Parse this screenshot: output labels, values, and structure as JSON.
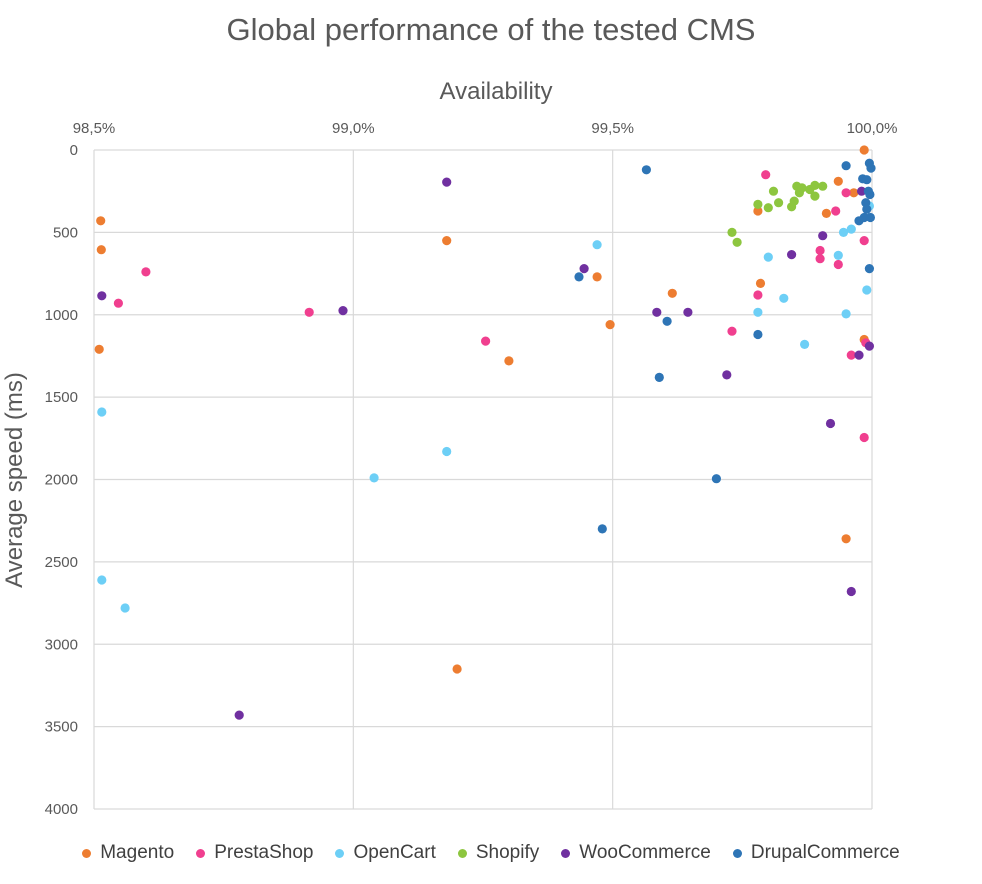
{
  "chart_data": {
    "type": "scatter",
    "title": "Global performance of the tested CMS",
    "xlabel": "Availability",
    "ylabel": "Average speed (ms)",
    "xlim": [
      98.5,
      100.0
    ],
    "ylim": [
      0,
      4000
    ],
    "y_inverted": true,
    "x_axis_position": "top",
    "x_ticks": [
      "98,5%",
      "99,0%",
      "99,5%",
      "100,0%"
    ],
    "y_ticks": [
      "0",
      "500",
      "1000",
      "1500",
      "2000",
      "2500",
      "3000",
      "3500",
      "4000"
    ],
    "grid": true,
    "legend_position": "bottom",
    "series": [
      {
        "name": "Magento",
        "color": "#ED7D31",
        "points": [
          [
            98.513,
            430
          ],
          [
            98.514,
            605
          ],
          [
            98.51,
            1210
          ],
          [
            99.18,
            550
          ],
          [
            99.47,
            770
          ],
          [
            99.3,
            1280
          ],
          [
            99.2,
            3150
          ],
          [
            99.495,
            1060
          ],
          [
            99.615,
            870
          ],
          [
            99.78,
            370
          ],
          [
            99.785,
            810
          ],
          [
            99.935,
            190
          ],
          [
            99.912,
            385
          ],
          [
            99.965,
            260
          ],
          [
            99.985,
            0
          ],
          [
            99.985,
            1150
          ],
          [
            99.95,
            2360
          ]
        ]
      },
      {
        "name": "PrestaShop",
        "color": "#F03F8F",
        "points": [
          [
            98.547,
            930
          ],
          [
            98.6,
            740
          ],
          [
            98.915,
            985
          ],
          [
            99.255,
            1160
          ],
          [
            99.73,
            1100
          ],
          [
            99.78,
            880
          ],
          [
            99.795,
            150
          ],
          [
            99.9,
            610
          ],
          [
            99.9,
            660
          ],
          [
            99.93,
            370
          ],
          [
            99.935,
            695
          ],
          [
            99.95,
            260
          ],
          [
            99.96,
            1245
          ],
          [
            99.985,
            550
          ],
          [
            99.988,
            1170
          ],
          [
            99.985,
            1745
          ]
        ]
      },
      {
        "name": "OpenCart",
        "color": "#6DCFF6",
        "points": [
          [
            98.515,
            1590
          ],
          [
            98.515,
            2610
          ],
          [
            98.56,
            2780
          ],
          [
            99.04,
            1990
          ],
          [
            99.18,
            1830
          ],
          [
            99.47,
            575
          ],
          [
            99.78,
            985
          ],
          [
            99.8,
            650
          ],
          [
            99.83,
            900
          ],
          [
            99.87,
            1180
          ],
          [
            99.935,
            640
          ],
          [
            99.945,
            500
          ],
          [
            99.95,
            995
          ],
          [
            99.96,
            480
          ],
          [
            99.99,
            850
          ],
          [
            99.995,
            340
          ]
        ]
      },
      {
        "name": "Shopify",
        "color": "#8DC63F",
        "points": [
          [
            99.73,
            500
          ],
          [
            99.74,
            560
          ],
          [
            99.78,
            330
          ],
          [
            99.8,
            350
          ],
          [
            99.81,
            250
          ],
          [
            99.82,
            320
          ],
          [
            99.845,
            345
          ],
          [
            99.85,
            310
          ],
          [
            99.855,
            220
          ],
          [
            99.86,
            260
          ],
          [
            99.865,
            230
          ],
          [
            99.88,
            240
          ],
          [
            99.89,
            280
          ],
          [
            99.89,
            215
          ],
          [
            99.905,
            220
          ]
        ]
      },
      {
        "name": "WooCommerce",
        "color": "#7030A0",
        "points": [
          [
            98.515,
            885
          ],
          [
            98.78,
            3430
          ],
          [
            98.98,
            975
          ],
          [
            99.18,
            195
          ],
          [
            99.445,
            720
          ],
          [
            99.585,
            985
          ],
          [
            99.645,
            985
          ],
          [
            99.72,
            1365
          ],
          [
            99.845,
            635
          ],
          [
            99.905,
            520
          ],
          [
            99.92,
            1660
          ],
          [
            99.96,
            2680
          ],
          [
            99.975,
            1245
          ],
          [
            99.98,
            250
          ],
          [
            99.995,
            1190
          ]
        ]
      },
      {
        "name": "DrupalCommerce",
        "color": "#2E75B6",
        "points": [
          [
            99.435,
            770
          ],
          [
            99.48,
            2300
          ],
          [
            99.565,
            120
          ],
          [
            99.59,
            1380
          ],
          [
            99.605,
            1040
          ],
          [
            99.7,
            1995
          ],
          [
            99.78,
            1120
          ],
          [
            99.95,
            95
          ],
          [
            99.975,
            430
          ],
          [
            99.982,
            175
          ],
          [
            99.985,
            410
          ],
          [
            99.988,
            320
          ],
          [
            99.99,
            180
          ],
          [
            99.993,
            250
          ],
          [
            99.995,
            80
          ],
          [
            99.996,
            270
          ],
          [
            99.997,
            410
          ],
          [
            99.995,
            720
          ],
          [
            99.998,
            110
          ],
          [
            99.99,
            360
          ]
        ]
      }
    ]
  }
}
